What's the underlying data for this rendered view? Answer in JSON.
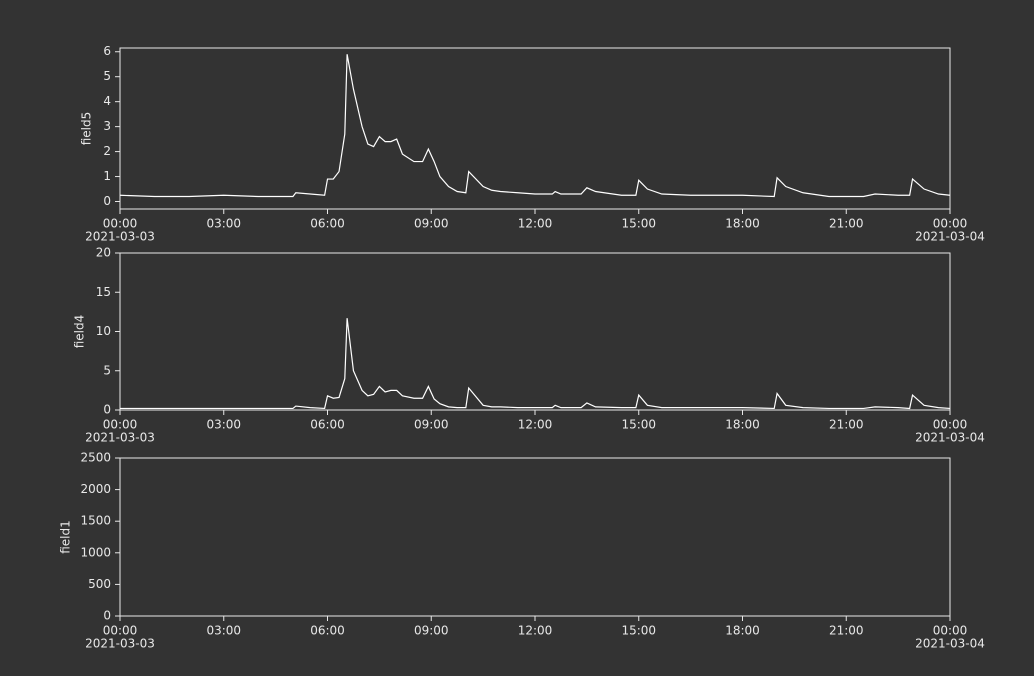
{
  "chart_data": [
    {
      "type": "line",
      "ylabel": "field5",
      "color": "#ffffff",
      "x": [
        "2021-03-03 00:00",
        "2021-03-03 01:00",
        "2021-03-03 02:00",
        "2021-03-03 03:00",
        "2021-03-03 04:00",
        "2021-03-03 05:00",
        "2021-03-03 05:05",
        "2021-03-03 05:30",
        "2021-03-03 05:55",
        "2021-03-03 06:00",
        "2021-03-03 06:10",
        "2021-03-03 06:20",
        "2021-03-03 06:30",
        "2021-03-03 06:34",
        "2021-03-03 06:45",
        "2021-03-03 07:00",
        "2021-03-03 07:10",
        "2021-03-03 07:20",
        "2021-03-03 07:30",
        "2021-03-03 07:40",
        "2021-03-03 07:50",
        "2021-03-03 08:00",
        "2021-03-03 08:10",
        "2021-03-03 08:30",
        "2021-03-03 08:45",
        "2021-03-03 08:55",
        "2021-03-03 09:05",
        "2021-03-03 09:15",
        "2021-03-03 09:30",
        "2021-03-03 09:45",
        "2021-03-03 10:00",
        "2021-03-03 10:05",
        "2021-03-03 10:30",
        "2021-03-03 10:45",
        "2021-03-03 11:00",
        "2021-03-03 11:30",
        "2021-03-03 12:00",
        "2021-03-03 12:30",
        "2021-03-03 12:35",
        "2021-03-03 12:45",
        "2021-03-03 13:20",
        "2021-03-03 13:30",
        "2021-03-03 13:45",
        "2021-03-03 14:30",
        "2021-03-03 14:55",
        "2021-03-03 15:00",
        "2021-03-03 15:15",
        "2021-03-03 15:40",
        "2021-03-03 16:30",
        "2021-03-03 18:00",
        "2021-03-03 18:55",
        "2021-03-03 19:00",
        "2021-03-03 19:15",
        "2021-03-03 19:45",
        "2021-03-03 20:30",
        "2021-03-03 21:30",
        "2021-03-03 21:50",
        "2021-03-03 22:30",
        "2021-03-03 22:50",
        "2021-03-03 22:55",
        "2021-03-03 23:15",
        "2021-03-03 23:40",
        "2021-03-04 00:00"
      ],
      "values": [
        0.25,
        0.2,
        0.2,
        0.25,
        0.2,
        0.2,
        0.35,
        0.3,
        0.25,
        0.9,
        0.9,
        1.2,
        2.7,
        5.9,
        4.5,
        3.0,
        2.3,
        2.2,
        2.6,
        2.4,
        2.4,
        2.5,
        1.9,
        1.6,
        1.6,
        2.1,
        1.6,
        1.0,
        0.6,
        0.4,
        0.35,
        1.2,
        0.6,
        0.45,
        0.4,
        0.35,
        0.3,
        0.3,
        0.4,
        0.3,
        0.3,
        0.55,
        0.4,
        0.25,
        0.25,
        0.85,
        0.5,
        0.3,
        0.25,
        0.25,
        0.2,
        0.95,
        0.6,
        0.35,
        0.2,
        0.2,
        0.3,
        0.25,
        0.25,
        0.9,
        0.5,
        0.3,
        0.25
      ],
      "xlim": [
        "2021-03-03 00:00",
        "2021-03-04 00:00"
      ],
      "xticks": [
        {
          "value": "2021-03-03 00:00",
          "label": "00:00",
          "date": "2021-03-03"
        },
        {
          "value": "2021-03-03 03:00",
          "label": "03:00"
        },
        {
          "value": "2021-03-03 06:00",
          "label": "06:00"
        },
        {
          "value": "2021-03-03 09:00",
          "label": "09:00"
        },
        {
          "value": "2021-03-03 12:00",
          "label": "12:00"
        },
        {
          "value": "2021-03-03 15:00",
          "label": "15:00"
        },
        {
          "value": "2021-03-03 18:00",
          "label": "18:00"
        },
        {
          "value": "2021-03-03 21:00",
          "label": "21:00"
        },
        {
          "value": "2021-03-04 00:00",
          "label": "00:00",
          "date": "2021-03-04"
        }
      ],
      "ylim": [
        -0.3,
        6.15
      ],
      "yticks": [
        0,
        1,
        2,
        3,
        4,
        5,
        6
      ]
    },
    {
      "type": "line",
      "ylabel": "field4",
      "color": "#ffffff",
      "x": [
        "2021-03-03 00:00",
        "2021-03-03 01:00",
        "2021-03-03 02:00",
        "2021-03-03 03:00",
        "2021-03-03 04:00",
        "2021-03-03 05:00",
        "2021-03-03 05:05",
        "2021-03-03 05:30",
        "2021-03-03 05:55",
        "2021-03-03 06:00",
        "2021-03-03 06:10",
        "2021-03-03 06:20",
        "2021-03-03 06:30",
        "2021-03-03 06:34",
        "2021-03-03 06:45",
        "2021-03-03 07:00",
        "2021-03-03 07:10",
        "2021-03-03 07:20",
        "2021-03-03 07:30",
        "2021-03-03 07:40",
        "2021-03-03 07:50",
        "2021-03-03 08:00",
        "2021-03-03 08:10",
        "2021-03-03 08:30",
        "2021-03-03 08:45",
        "2021-03-03 08:55",
        "2021-03-03 09:05",
        "2021-03-03 09:15",
        "2021-03-03 09:30",
        "2021-03-03 09:45",
        "2021-03-03 10:00",
        "2021-03-03 10:05",
        "2021-03-03 10:30",
        "2021-03-03 10:45",
        "2021-03-03 11:00",
        "2021-03-03 11:30",
        "2021-03-03 12:00",
        "2021-03-03 12:30",
        "2021-03-03 12:35",
        "2021-03-03 12:45",
        "2021-03-03 13:20",
        "2021-03-03 13:30",
        "2021-03-03 13:45",
        "2021-03-03 14:30",
        "2021-03-03 14:55",
        "2021-03-03 15:00",
        "2021-03-03 15:15",
        "2021-03-03 15:40",
        "2021-03-03 16:30",
        "2021-03-03 18:00",
        "2021-03-03 18:55",
        "2021-03-03 19:00",
        "2021-03-03 19:15",
        "2021-03-03 19:45",
        "2021-03-03 20:30",
        "2021-03-03 21:30",
        "2021-03-03 21:50",
        "2021-03-03 22:30",
        "2021-03-03 22:50",
        "2021-03-03 22:55",
        "2021-03-03 23:15",
        "2021-03-03 23:40",
        "2021-03-04 00:00"
      ],
      "values": [
        0.2,
        0.2,
        0.2,
        0.2,
        0.2,
        0.2,
        0.5,
        0.3,
        0.2,
        1.8,
        1.5,
        1.6,
        4.0,
        11.7,
        5.0,
        2.5,
        1.8,
        2.0,
        3.0,
        2.3,
        2.5,
        2.5,
        1.8,
        1.5,
        1.5,
        3.0,
        1.4,
        0.8,
        0.4,
        0.3,
        0.3,
        2.8,
        0.6,
        0.4,
        0.4,
        0.3,
        0.3,
        0.3,
        0.6,
        0.3,
        0.3,
        0.9,
        0.4,
        0.3,
        0.3,
        1.9,
        0.6,
        0.3,
        0.3,
        0.3,
        0.2,
        2.1,
        0.6,
        0.3,
        0.2,
        0.2,
        0.4,
        0.3,
        0.2,
        1.9,
        0.6,
        0.3,
        0.2
      ],
      "xlim": [
        "2021-03-03 00:00",
        "2021-03-04 00:00"
      ],
      "xticks": [
        {
          "value": "2021-03-03 00:00",
          "label": "00:00",
          "date": "2021-03-03"
        },
        {
          "value": "2021-03-03 03:00",
          "label": "03:00"
        },
        {
          "value": "2021-03-03 06:00",
          "label": "06:00"
        },
        {
          "value": "2021-03-03 09:00",
          "label": "09:00"
        },
        {
          "value": "2021-03-03 12:00",
          "label": "12:00"
        },
        {
          "value": "2021-03-03 15:00",
          "label": "15:00"
        },
        {
          "value": "2021-03-03 18:00",
          "label": "18:00"
        },
        {
          "value": "2021-03-03 21:00",
          "label": "21:00"
        },
        {
          "value": "2021-03-04 00:00",
          "label": "00:00",
          "date": "2021-03-04"
        }
      ],
      "ylim": [
        0,
        20
      ],
      "yticks": [
        0,
        5,
        10,
        15,
        20
      ]
    },
    {
      "type": "line",
      "ylabel": "field1",
      "color": "#ffffff",
      "x": [],
      "values": [],
      "xlim": [
        "2021-03-03 00:00",
        "2021-03-04 00:00"
      ],
      "xticks": [
        {
          "value": "2021-03-03 00:00",
          "label": "00:00",
          "date": "2021-03-03"
        },
        {
          "value": "2021-03-03 03:00",
          "label": "03:00"
        },
        {
          "value": "2021-03-03 06:00",
          "label": "06:00"
        },
        {
          "value": "2021-03-03 09:00",
          "label": "09:00"
        },
        {
          "value": "2021-03-03 12:00",
          "label": "12:00"
        },
        {
          "value": "2021-03-03 15:00",
          "label": "15:00"
        },
        {
          "value": "2021-03-03 18:00",
          "label": "18:00"
        },
        {
          "value": "2021-03-03 21:00",
          "label": "21:00"
        },
        {
          "value": "2021-03-04 00:00",
          "label": "00:00",
          "date": "2021-03-04"
        }
      ],
      "ylim": [
        0,
        2500
      ],
      "yticks": [
        0,
        500,
        1000,
        1500,
        2000,
        2500
      ]
    }
  ]
}
